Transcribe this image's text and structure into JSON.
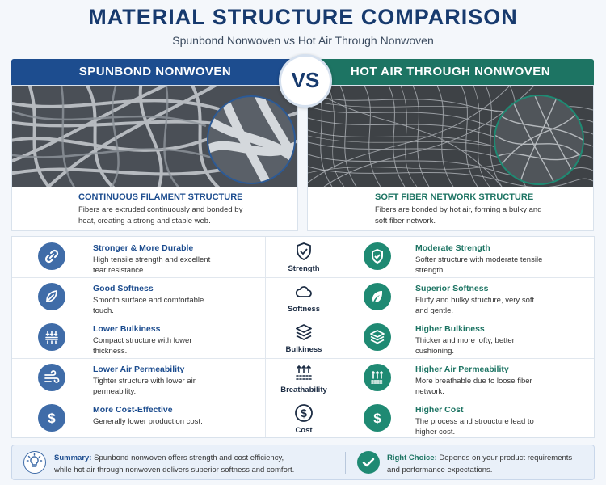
{
  "title": "MATERIAL STRUCTURE COMPARISON",
  "subtitle": "Spunbond Nonwoven vs Hot Air Through Nonwoven",
  "vs_label": "VS",
  "left": {
    "header": "SPUNBOND NONWOVEN",
    "structure_title": "CONTINUOUS FILAMENT STRUCTURE",
    "structure_text": "Fibers are extruded continuously and bonded by heat, creating a strong and stable web."
  },
  "right": {
    "header": "HOT AIR THROUGH NONWOVEN",
    "structure_title": "SOFT FIBER NETWORK STRUCTURE",
    "structure_text": "Fibers are bonded by hot air, forming a bulky and soft fiber network."
  },
  "rows": [
    {
      "criterion": "Strength",
      "criterion_icon": "shield-icon",
      "left_icon": "chain-link-icon",
      "left_title": "Stronger & More Durable",
      "left_text": "High tensile strength and excellent tear resistance.",
      "right_icon": "shield-check-icon",
      "right_title": "Moderate Strength",
      "right_text": "Softer structure with moderate tensile strength."
    },
    {
      "criterion": "Softness",
      "criterion_icon": "cloud-icon",
      "left_icon": "feather-icon",
      "left_title": "Good Softness",
      "left_text": "Smooth surface and comfortable touch.",
      "right_icon": "leaf-icon",
      "right_title": "Superior Softness",
      "right_text": "Fluffy and bulky structure, very soft and gentle."
    },
    {
      "criterion": "Bulkiness",
      "criterion_icon": "layers-icon",
      "left_icon": "compress-arrows-icon",
      "left_title": "Lower Bulkiness",
      "left_text": "Compact structure with lower thickness.",
      "right_icon": "stacked-layers-icon",
      "right_title": "Higher Bulkiness",
      "right_text": "Thicker and more lofty, better cushioning."
    },
    {
      "criterion": "Breathability",
      "criterion_icon": "air-flow-icon",
      "left_icon": "wind-icon",
      "left_title": "Lower Air Permeability",
      "left_text": "Tighter structure with lower air permeability.",
      "right_icon": "air-up-arrows-icon",
      "right_title": "Higher Air Permeability",
      "right_text": "More breathable due to loose fiber network."
    },
    {
      "criterion": "Cost",
      "criterion_icon": "dollar-circle-icon",
      "left_icon": "dollar-icon",
      "left_title": "More Cost-Effective",
      "left_text": "Generally lower production cost.",
      "right_icon": "dollar-icon",
      "right_title": "Higher Cost",
      "right_text": "The process and stroucture lead to higher cost."
    }
  ],
  "summary": {
    "left_label": "Summary:",
    "left_text_1": "Spunbond nonwoven offers strength and cost efficiency,",
    "left_text_2": "while hot air through nonwoven delivers superior softness and comfort.",
    "right_label": "Right Choice:",
    "right_text_1": "Depends on your product requirements",
    "right_text_2": "and performance expectations."
  },
  "colors": {
    "navy": "#173a6e",
    "spunbond_blue": "#1d4d8f",
    "hot_air_green": "#1d7463"
  }
}
